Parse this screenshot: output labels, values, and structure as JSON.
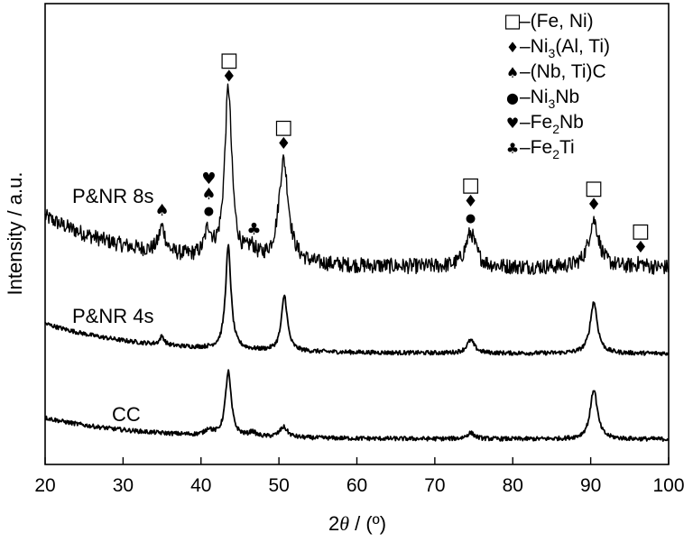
{
  "chart_data": {
    "type": "line",
    "xlabel_prefix": "2",
    "xlabel_symbol": "θ",
    "xlabel_suffix": " / (º)",
    "ylabel": "Intensity / a.u.",
    "xlim": [
      20,
      100
    ],
    "xticks": [
      "20",
      "30",
      "40",
      "50",
      "60",
      "70",
      "80",
      "90",
      "100"
    ],
    "series": [
      {
        "name": "P&NR 8s",
        "baseline": 2.0,
        "start_rise": 0.6,
        "decay": 12,
        "noise": 0.09,
        "peaks": [
          {
            "x": 35.0,
            "h": 0.3,
            "w": 0.5
          },
          {
            "x": 40.9,
            "h": 0.3,
            "w": 0.5
          },
          {
            "x": 43.5,
            "h": 2.0,
            "w": 0.55
          },
          {
            "x": 46.5,
            "h": 0.12,
            "w": 0.6
          },
          {
            "x": 50.6,
            "h": 1.2,
            "w": 0.75
          },
          {
            "x": 74.6,
            "h": 0.4,
            "w": 0.8
          },
          {
            "x": 90.4,
            "h": 0.55,
            "w": 0.8
          },
          {
            "x": 96.4,
            "h": 0.04,
            "w": 0.8
          }
        ]
      },
      {
        "name": "P&NR 4s",
        "baseline": 1.0,
        "start_rise": 0.35,
        "decay": 12,
        "noise": 0.025,
        "peaks": [
          {
            "x": 35.0,
            "h": 0.1,
            "w": 0.35
          },
          {
            "x": 43.5,
            "h": 1.2,
            "w": 0.42
          },
          {
            "x": 50.7,
            "h": 0.65,
            "w": 0.45
          },
          {
            "x": 74.6,
            "h": 0.15,
            "w": 0.6
          },
          {
            "x": 90.4,
            "h": 0.6,
            "w": 0.55
          }
        ]
      },
      {
        "name": "CC",
        "baseline": 0.0,
        "start_rise": 0.25,
        "decay": 12,
        "noise": 0.025,
        "peaks": [
          {
            "x": 41.0,
            "h": 0.07,
            "w": 0.5
          },
          {
            "x": 43.5,
            "h": 0.75,
            "w": 0.45
          },
          {
            "x": 46.6,
            "h": 0.05,
            "w": 0.5
          },
          {
            "x": 50.6,
            "h": 0.12,
            "w": 0.6
          },
          {
            "x": 74.6,
            "h": 0.07,
            "w": 0.6
          },
          {
            "x": 90.4,
            "h": 0.58,
            "w": 0.55
          }
        ]
      }
    ],
    "legend": {
      "placement": "top-right",
      "entries": [
        {
          "symbol": "□",
          "label": "–(Fe, Ni)",
          "sub": "",
          "after": ""
        },
        {
          "symbol": "♦",
          "label": "–Ni",
          "sub": "3",
          "after": "(Al, Ti)"
        },
        {
          "symbol": "♠",
          "label": "–(Nb, Ti)C",
          "sub": "",
          "after": ""
        },
        {
          "symbol": "●",
          "label": "–Ni",
          "sub": "3",
          "after": "Nb"
        },
        {
          "symbol": "♥",
          "label": "–Fe",
          "sub": "2",
          "after": "Nb"
        },
        {
          "symbol": "♣",
          "label": "–Fe",
          "sub": "2",
          "after": "Ti"
        }
      ]
    },
    "peak_markers": [
      {
        "x": 43.6,
        "symbols": [
          "♦",
          "□"
        ]
      },
      {
        "x": 50.6,
        "symbols": [
          "♦",
          "□"
        ]
      },
      {
        "x": 74.6,
        "symbols": [
          "●",
          "♦",
          "□"
        ]
      },
      {
        "x": 90.4,
        "symbols": [
          "♦",
          "□"
        ]
      },
      {
        "x": 96.4,
        "symbols": [
          "♦",
          "□"
        ]
      },
      {
        "x": 35.0,
        "symbols": [
          "♠"
        ]
      },
      {
        "x": 41.0,
        "symbols": [
          "●",
          "♠",
          "♥"
        ]
      },
      {
        "x": 46.8,
        "symbols": [
          "♣"
        ]
      }
    ]
  }
}
